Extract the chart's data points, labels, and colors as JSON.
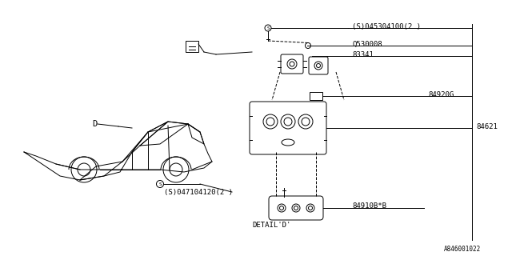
{
  "title": "",
  "bg_color": "#ffffff",
  "line_color": "#000000",
  "fig_width": 6.4,
  "fig_height": 3.2,
  "dpi": 100,
  "labels": {
    "S045304100": "(S)045304100(2 )",
    "Q530008": "Q530008",
    "83341": "83341",
    "84621": "84621",
    "84920G": "84920G",
    "84910BsB": "84910B*B",
    "S047104120": "(S)047104120(2 )",
    "D": "D",
    "DETAIL_D": "DETAIL'D'",
    "ref": "A846001022"
  },
  "font_size": 6.5,
  "small_font": 5.5
}
